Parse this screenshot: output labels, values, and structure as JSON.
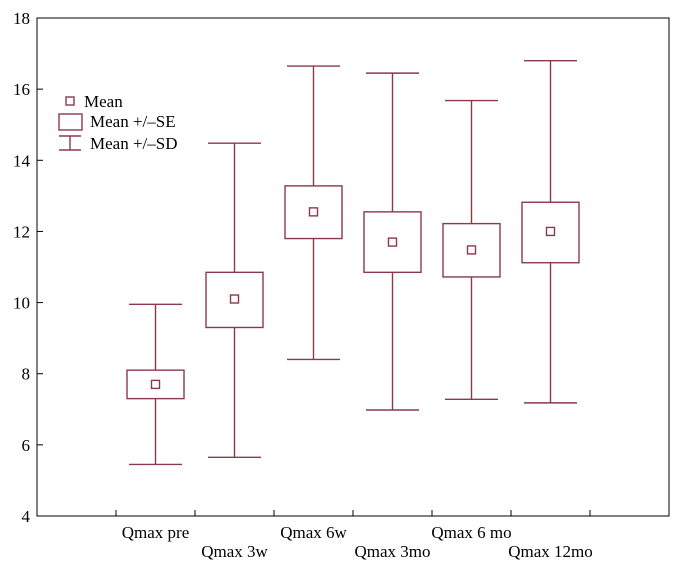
{
  "chart_data": {
    "type": "box",
    "categories": [
      "Qmax pre",
      "Qmax 3w",
      "Qmax 6w",
      "Qmax 3mo",
      "Qmax 6 mo",
      "Qmax 12mo"
    ],
    "mean": [
      7.7,
      10.1,
      12.55,
      11.7,
      11.48,
      12.0
    ],
    "se_low": [
      7.3,
      9.3,
      11.8,
      10.85,
      10.72,
      11.12
    ],
    "se_high": [
      8.1,
      10.85,
      13.28,
      12.55,
      12.22,
      12.82
    ],
    "sd_low": [
      5.45,
      5.65,
      8.4,
      6.98,
      7.28,
      7.18
    ],
    "sd_high": [
      9.95,
      14.48,
      16.65,
      16.45,
      15.68,
      16.8
    ],
    "ylim": [
      4,
      18
    ],
    "yticks": [
      "4",
      "6",
      "8",
      "10",
      "12",
      "14",
      "16",
      "18"
    ],
    "legend": [
      "Mean",
      "Mean +/–SE",
      "Mean +/–SD"
    ],
    "legend_position": "top-left",
    "grid": false,
    "color": "#8b3a4a"
  }
}
